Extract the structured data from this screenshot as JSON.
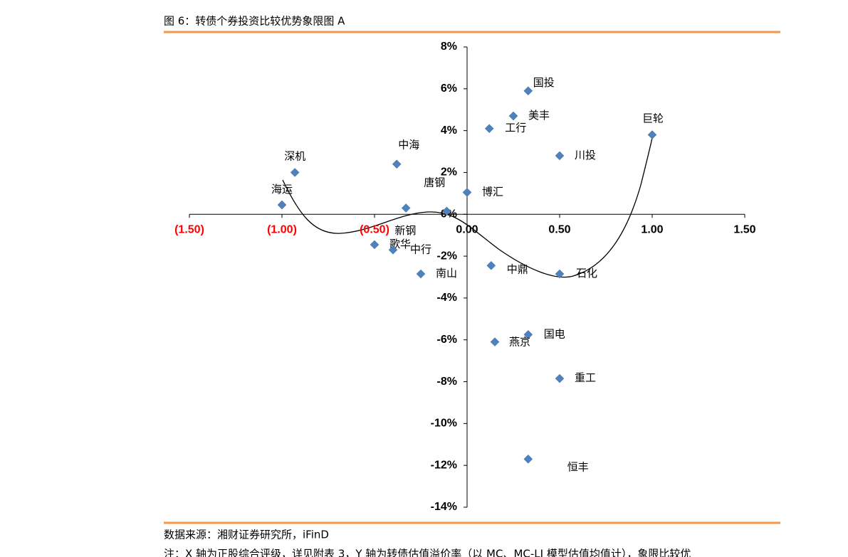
{
  "header": {
    "title": "图 6：转债个券投资比较优势象限图 A"
  },
  "chart_data": {
    "type": "scatter",
    "labels": [
      "国投",
      "美丰",
      "工行",
      "巨轮",
      "川投",
      "深机",
      "中海",
      "唐钢",
      "博汇",
      "海运",
      "新钢",
      "歌华",
      "中行",
      "南山",
      "中鼎",
      "石化",
      "国电",
      "燕京",
      "重工",
      "恒丰"
    ],
    "x": [
      0.33,
      0.25,
      0.12,
      1.0,
      0.5,
      -0.93,
      -0.38,
      -0.33,
      0.0,
      -1.0,
      -0.11,
      -0.5,
      -0.4,
      -0.25,
      0.13,
      0.5,
      0.33,
      0.15,
      0.5,
      0.33
    ],
    "values": [
      5.9,
      4.7,
      4.1,
      3.8,
      2.8,
      2.0,
      2.4,
      0.3,
      1.05,
      0.45,
      0.15,
      -1.45,
      -1.7,
      -2.85,
      -2.45,
      -2.85,
      -5.75,
      -6.1,
      -7.85,
      -11.7
    ],
    "color": "#4f81bd",
    "xlim": [
      -1.5,
      1.5
    ],
    "xticks": [
      {
        "value": -1.5,
        "label": "(1.50)"
      },
      {
        "value": -1.0,
        "label": "(1.00)"
      },
      {
        "value": -0.5,
        "label": "(0.50)"
      },
      {
        "value": 0,
        "label": "0.00"
      },
      {
        "value": 0.5,
        "label": "0.50"
      },
      {
        "value": 1.0,
        "label": "1.00"
      },
      {
        "value": 1.5,
        "label": "1.50"
      }
    ],
    "negative_tick_color": "#ff0000",
    "ylim": [
      -14,
      8
    ],
    "yticks": [
      {
        "value": 8,
        "label": "8%"
      },
      {
        "value": 6,
        "label": "6%"
      },
      {
        "value": 4,
        "label": "4%"
      },
      {
        "value": 2,
        "label": "2%"
      },
      {
        "value": 0,
        "label": "0%"
      },
      {
        "value": -2,
        "label": "-2%"
      },
      {
        "value": -4,
        "label": "-4%"
      },
      {
        "value": -6,
        "label": "-6%"
      },
      {
        "value": -8,
        "label": "-8%"
      },
      {
        "value": -10,
        "label": "-10%"
      },
      {
        "value": -12,
        "label": "-12%"
      },
      {
        "value": -14,
        "label": "-14%"
      }
    ]
  },
  "footer": {
    "source": "数据来源：湘财证券研究所，iFinD",
    "note": "注：X 轴为正股综合评级，详见附表 3，Y 轴为转债估值溢价率（以 MC、MC-LJ 模型估值均值计），象限比较优"
  }
}
